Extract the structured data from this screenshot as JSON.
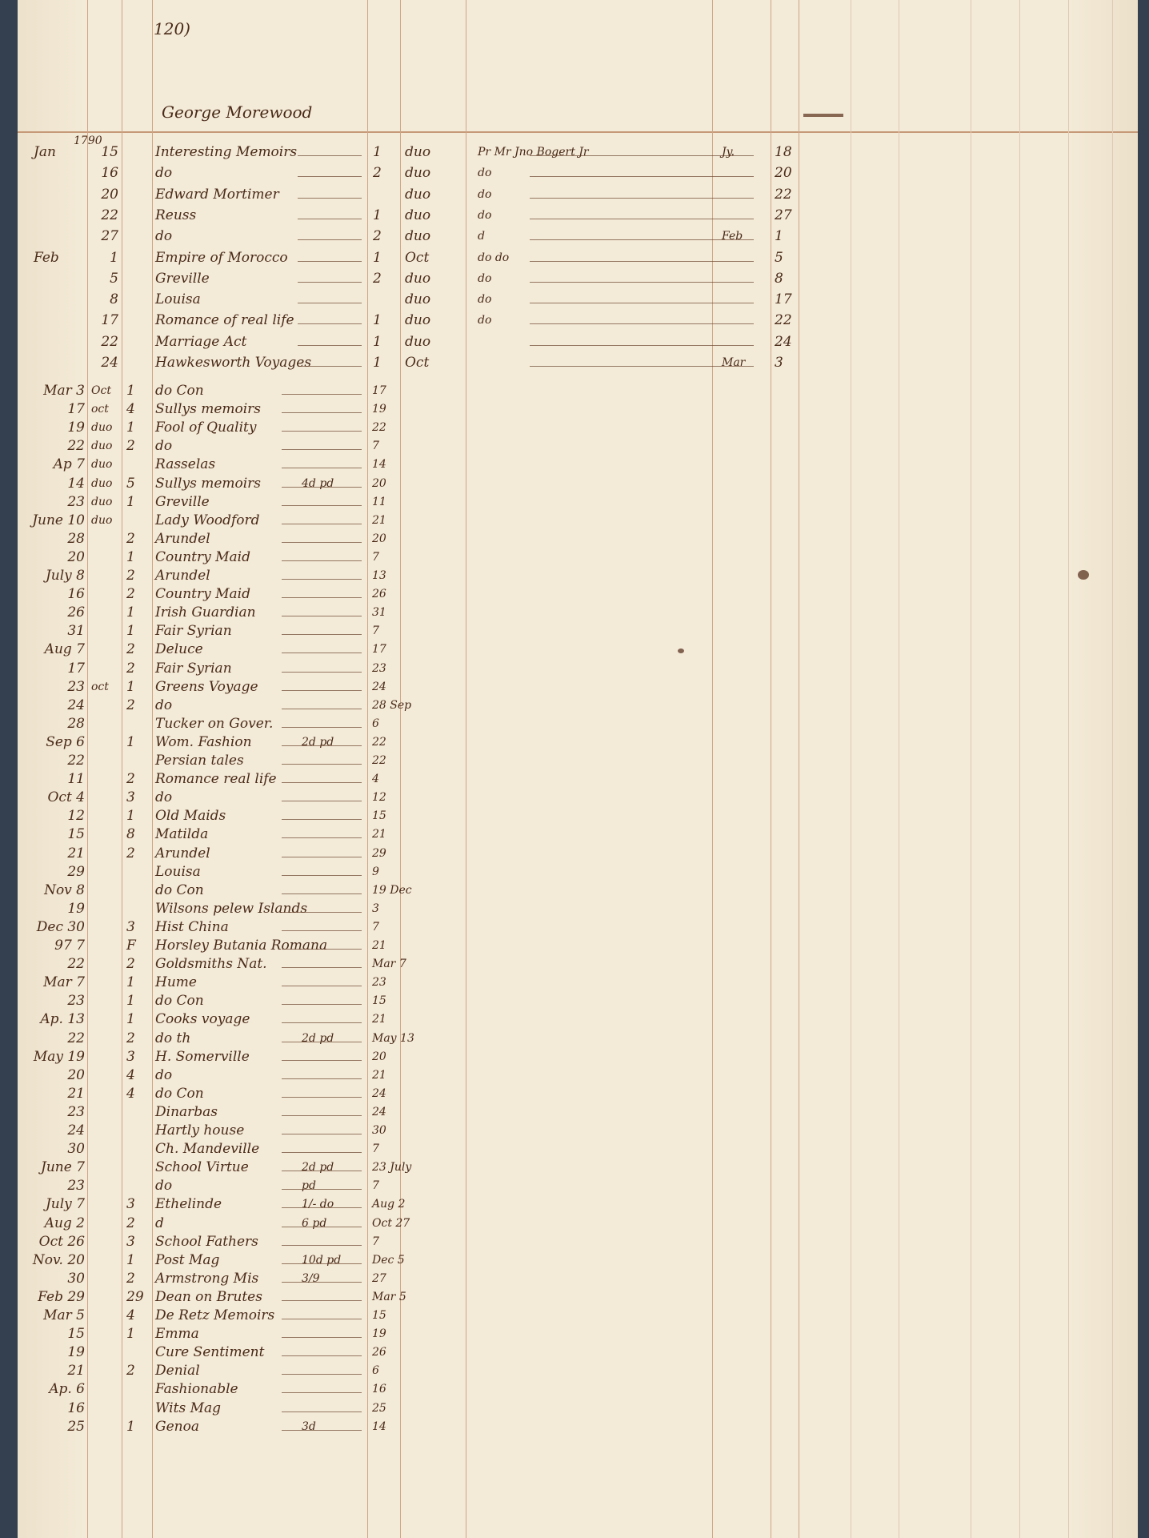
{
  "page_number": "120)",
  "account_name": "George Morewood",
  "year": "1790",
  "section1": [
    {
      "month": "Jan",
      "day": "15",
      "title": "Interesting Memoirs",
      "vol": "1",
      "format": "duo",
      "borrower": "Pr Mr Jno Bogert Jr",
      "ret_month": "Jy.",
      "ret": "18"
    },
    {
      "month": "",
      "day": "16",
      "title": "do",
      "vol": "2",
      "format": "duo",
      "borrower": "do",
      "ret_month": "",
      "ret": "20"
    },
    {
      "month": "",
      "day": "20",
      "title": "Edward Mortimer",
      "vol": "",
      "format": "duo",
      "borrower": "do",
      "ret_month": "",
      "ret": "22"
    },
    {
      "month": "",
      "day": "22",
      "title": "Reuss",
      "vol": "1",
      "format": "duo",
      "borrower": "do",
      "ret_month": "",
      "ret": "27"
    },
    {
      "month": "",
      "day": "27",
      "title": "do",
      "vol": "2",
      "format": "duo",
      "borrower": "d",
      "ret_month": "Feb",
      "ret": "1"
    },
    {
      "month": "Feb",
      "day": "1",
      "title": "Empire of Morocco",
      "vol": "1",
      "format": "Oct",
      "borrower": "do do",
      "ret_month": "",
      "ret": "5"
    },
    {
      "month": "",
      "day": "5",
      "title": "Greville",
      "vol": "2",
      "format": "duo",
      "borrower": "do",
      "ret_month": "",
      "ret": "8"
    },
    {
      "month": "",
      "day": "8",
      "title": "Louisa",
      "vol": "",
      "format": "duo",
      "borrower": "do",
      "ret_month": "",
      "ret": "17"
    },
    {
      "month": "",
      "day": "17",
      "title": "Romance of real life",
      "vol": "1",
      "format": "duo",
      "borrower": "do",
      "ret_month": "",
      "ret": "22"
    },
    {
      "month": "",
      "day": "22",
      "title": "Marriage Act",
      "vol": "1",
      "format": "duo",
      "borrower": "",
      "ret_month": "",
      "ret": "24"
    },
    {
      "month": "",
      "day": "24",
      "title": "Hawkesworth Voyages",
      "vol": "1",
      "format": "Oct",
      "borrower": "",
      "ret_month": "Mar",
      "ret": "3"
    }
  ],
  "section2": [
    {
      "date": "Mar 3",
      "format": "Oct",
      "vol": "1",
      "title": "do Con",
      "price": "",
      "ret": "17"
    },
    {
      "date": "17",
      "format": "oct",
      "vol": "4",
      "title": "Sullys memoirs",
      "price": "",
      "ret": "19"
    },
    {
      "date": "19",
      "format": "duo",
      "vol": "1",
      "title": "Fool of Quality",
      "price": "",
      "ret": "22"
    },
    {
      "date": "22",
      "format": "duo",
      "vol": "2",
      "title": "do",
      "price": "",
      "ret": "7"
    },
    {
      "date": "Ap 7",
      "format": "duo",
      "vol": "",
      "title": "Rasselas",
      "price": "",
      "ret": "14"
    },
    {
      "date": "14",
      "format": "duo",
      "vol": "5",
      "title": "Sullys memoirs",
      "price": "4d pd",
      "ret": "20"
    },
    {
      "date": "23",
      "format": "duo",
      "vol": "1",
      "title": "Greville",
      "price": "",
      "ret": "11"
    },
    {
      "date": "June 10",
      "format": "duo",
      "vol": "",
      "title": "Lady Woodford",
      "price": "",
      "ret": "21"
    },
    {
      "date": "28",
      "format": "",
      "vol": "2",
      "title": "Arundel",
      "price": "",
      "ret": "20"
    },
    {
      "date": "20",
      "format": "",
      "vol": "1",
      "title": "Country Maid",
      "price": "",
      "ret": "7"
    },
    {
      "date": "July 8",
      "format": "",
      "vol": "2",
      "title": "Arundel",
      "price": "",
      "ret": "13"
    },
    {
      "date": "16",
      "format": "",
      "vol": "2",
      "title": "Country Maid",
      "price": "",
      "ret": "26"
    },
    {
      "date": "26",
      "format": "",
      "vol": "1",
      "title": "Irish Guardian",
      "price": "",
      "ret": "31"
    },
    {
      "date": "31",
      "format": "",
      "vol": "1",
      "title": "Fair Syrian",
      "price": "",
      "ret": "7"
    },
    {
      "date": "Aug 7",
      "format": "",
      "vol": "2",
      "title": "Deluce",
      "price": "",
      "ret": "17"
    },
    {
      "date": "17",
      "format": "",
      "vol": "2",
      "title": "Fair Syrian",
      "price": "",
      "ret": "23"
    },
    {
      "date": "23",
      "format": "oct",
      "vol": "1",
      "title": "Greens Voyage",
      "price": "",
      "ret": "24"
    },
    {
      "date": "24",
      "format": "",
      "vol": "2",
      "title": "do",
      "price": "",
      "ret": "28 Sep"
    },
    {
      "date": "28",
      "format": "",
      "vol": "",
      "title": "Tucker on Gover.",
      "price": "",
      "ret": "6"
    },
    {
      "date": "Sep 6",
      "format": "",
      "vol": "1",
      "title": "Wom. Fashion",
      "price": "2d pd",
      "ret": "22"
    },
    {
      "date": "22",
      "format": "",
      "vol": "",
      "title": "Persian tales",
      "price": "",
      "ret": "22"
    },
    {
      "date": "11",
      "format": "",
      "vol": "2",
      "title": "Romance real life",
      "price": "",
      "ret": "4"
    },
    {
      "date": "Oct 4",
      "format": "",
      "vol": "3",
      "title": "do",
      "price": "",
      "ret": "12"
    },
    {
      "date": "12",
      "format": "",
      "vol": "1",
      "title": "Old Maids",
      "price": "",
      "ret": "15"
    },
    {
      "date": "15",
      "format": "",
      "vol": "8",
      "title": "Matilda",
      "price": "",
      "ret": "21"
    },
    {
      "date": "21",
      "format": "",
      "vol": "2",
      "title": "Arundel",
      "price": "",
      "ret": "29"
    },
    {
      "date": "29",
      "format": "",
      "vol": "",
      "title": "Louisa",
      "price": "",
      "ret": "9"
    },
    {
      "date": "Nov 8",
      "format": "",
      "vol": "",
      "title": "do Con",
      "price": "",
      "ret": "19 Dec"
    },
    {
      "date": "19",
      "format": "",
      "vol": "",
      "title": "Wilsons pelew Islands",
      "price": "",
      "ret": "3"
    },
    {
      "date": "Dec 30",
      "format": "",
      "vol": "3",
      "title": "Hist China",
      "price": "",
      "ret": "7"
    },
    {
      "date": "97 7",
      "format": "",
      "vol": "F",
      "title": "Horsley Butania Romana",
      "price": "",
      "ret": "21"
    },
    {
      "date": "22",
      "format": "",
      "vol": "2",
      "title": "Goldsmiths Nat.",
      "price": "",
      "ret": "Mar 7"
    },
    {
      "date": "Mar 7",
      "format": "",
      "vol": "1",
      "title": "Hume",
      "price": "",
      "ret": "23"
    },
    {
      "date": "23",
      "format": "",
      "vol": "1",
      "title": "do Con",
      "price": "",
      "ret": "15"
    },
    {
      "date": "Ap. 13",
      "format": "",
      "vol": "1",
      "title": "Cooks voyage",
      "price": "",
      "ret": "21"
    },
    {
      "date": "22",
      "format": "",
      "vol": "2",
      "title": "do th",
      "price": "2d pd",
      "ret": "May 13"
    },
    {
      "date": "May 19",
      "format": "",
      "vol": "3",
      "title": "H. Somerville",
      "price": "",
      "ret": "20"
    },
    {
      "date": "20",
      "format": "",
      "vol": "4",
      "title": "do",
      "price": "",
      "ret": "21"
    },
    {
      "date": "21",
      "format": "",
      "vol": "4",
      "title": "do Con",
      "price": "",
      "ret": "24"
    },
    {
      "date": "23",
      "format": "",
      "vol": "",
      "title": "Dinarbas",
      "price": "",
      "ret": "24"
    },
    {
      "date": "24",
      "format": "",
      "vol": "",
      "title": "Hartly house",
      "price": "",
      "ret": "30"
    },
    {
      "date": "30",
      "format": "",
      "vol": "",
      "title": "Ch. Mandeville",
      "price": "",
      "ret": "7"
    },
    {
      "date": "June 7",
      "format": "",
      "vol": "",
      "title": "School Virtue",
      "price": "2d pd",
      "ret": "23 July"
    },
    {
      "date": "23",
      "format": "",
      "vol": "",
      "title": "do",
      "price": "pd",
      "ret": "7"
    },
    {
      "date": "July 7",
      "format": "",
      "vol": "3",
      "title": "Ethelinde",
      "price": "1/- do",
      "ret": "Aug 2"
    },
    {
      "date": "Aug 2",
      "format": "",
      "vol": "2",
      "title": "d",
      "price": "6 pd",
      "ret": "Oct 27"
    },
    {
      "date": "Oct 26",
      "format": "",
      "vol": "3",
      "title": "School Fathers",
      "price": "",
      "ret": "7"
    },
    {
      "date": "Nov. 20",
      "format": "",
      "vol": "1",
      "title": "Post Mag",
      "price": "10d pd",
      "ret": "Dec 5"
    },
    {
      "date": "30",
      "format": "",
      "vol": "2",
      "title": "Armstrong Mis",
      "price": "3/9",
      "ret": "27"
    },
    {
      "date": "Feb 29",
      "format": "",
      "vol": "29",
      "title": "Dean on Brutes",
      "price": "",
      "ret": "Mar 5"
    },
    {
      "date": "Mar 5",
      "format": "",
      "vol": "4",
      "title": "De Retz Memoirs",
      "price": "",
      "ret": "15"
    },
    {
      "date": "15",
      "format": "",
      "vol": "1",
      "title": "Emma",
      "price": "",
      "ret": "19"
    },
    {
      "date": "19",
      "format": "",
      "vol": "",
      "title": "Cure Sentiment",
      "price": "",
      "ret": "26"
    },
    {
      "date": "21",
      "format": "",
      "vol": "2",
      "title": "Denial",
      "price": "",
      "ret": "6"
    },
    {
      "date": "Ap. 6",
      "format": "",
      "vol": "",
      "title": "Fashionable",
      "price": "",
      "ret": "16"
    },
    {
      "date": "16",
      "format": "",
      "vol": "",
      "title": "Wits Mag",
      "price": "",
      "ret": "25"
    },
    {
      "date": "25",
      "format": "",
      "vol": "1",
      "title": "Genoa",
      "price": "3d",
      "ret": "14"
    }
  ],
  "colors": {
    "paper": "#f3ead7",
    "ink": "#4a2a18",
    "rule": "#cfa587",
    "background": "#34404f"
  }
}
